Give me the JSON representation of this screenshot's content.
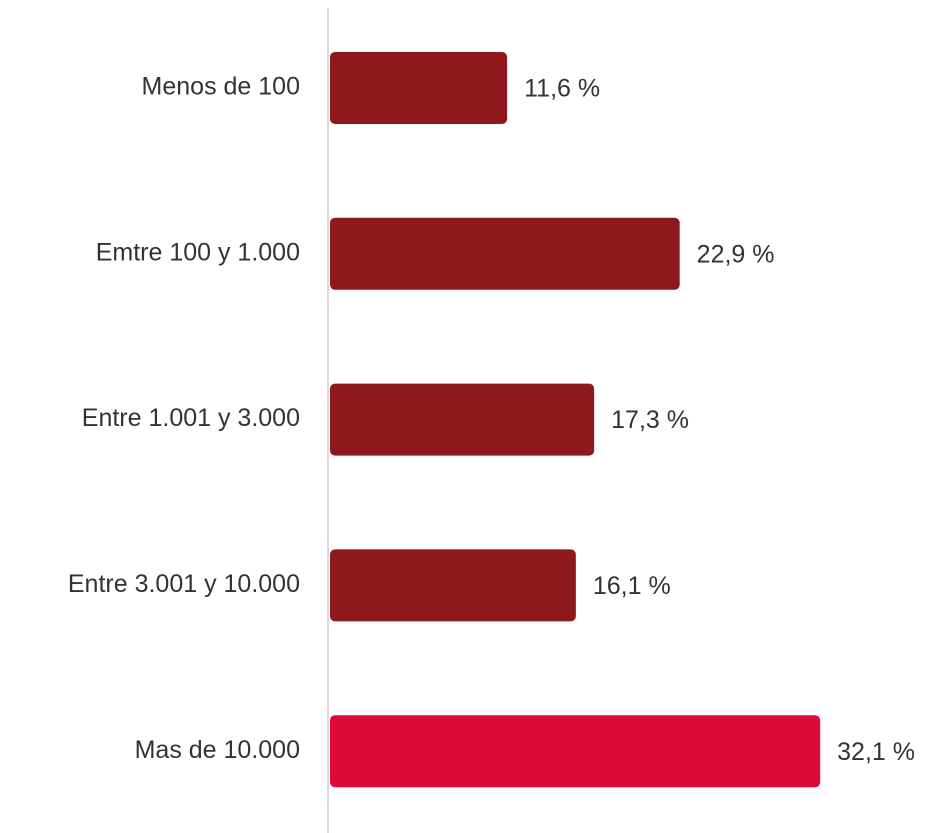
{
  "chart_data": {
    "type": "bar",
    "orientation": "horizontal",
    "categories": [
      "Menos de 100",
      "Emtre 100 y 1.000",
      "Entre 1.001 y 3.000",
      "Entre 3.001 y 10.000",
      "Mas de 10.000"
    ],
    "values": [
      11.6,
      22.9,
      17.3,
      16.1,
      32.1
    ],
    "value_labels": [
      "11,6 %",
      "22,9 %",
      "17,3 %",
      "16,1 %",
      "32,1 %"
    ],
    "colors": [
      "#8e191d",
      "#8e191d",
      "#8e191d",
      "#8e191d",
      "#dc0a35"
    ]
  }
}
